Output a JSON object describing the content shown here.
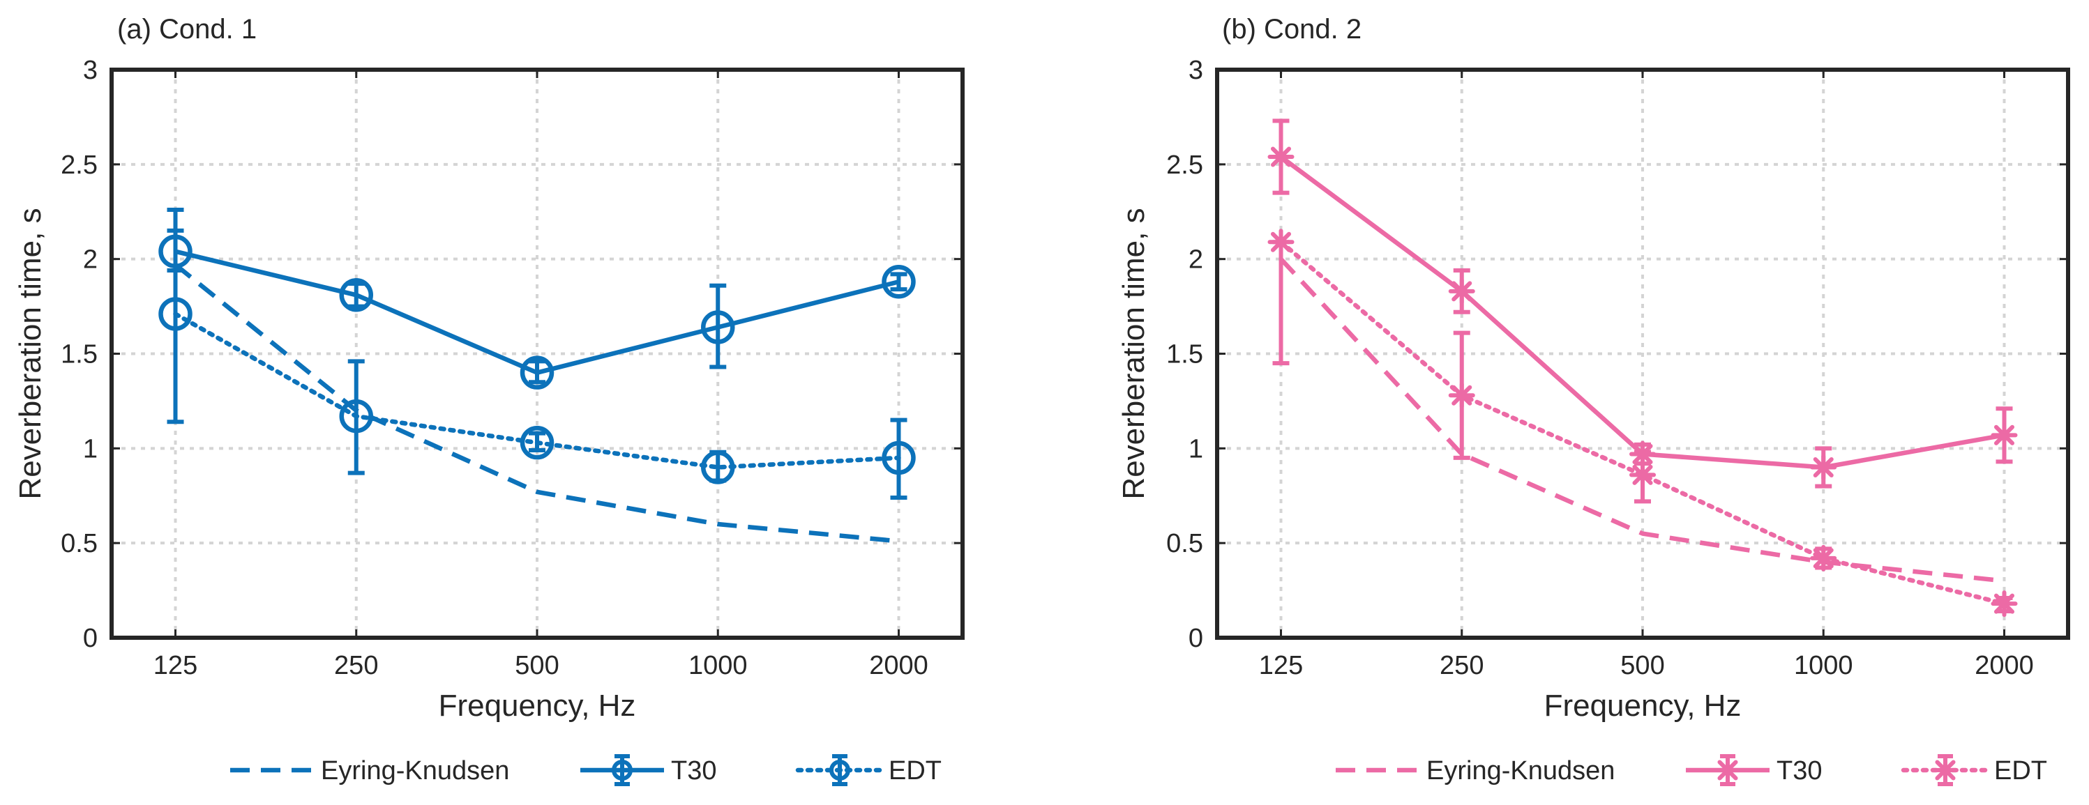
{
  "chart_data": [
    {
      "type": "line",
      "panel_title": "(a) Cond. 1",
      "xlabel": "Frequency, Hz",
      "ylabel": "Reverberation time, s",
      "categories": [
        "125",
        "250",
        "500",
        "1000",
        "2000"
      ],
      "y_ticks": [
        "0",
        "0.5",
        "1",
        "1.5",
        "2",
        "2.5",
        "3"
      ],
      "ylim": [
        0,
        3
      ],
      "grid": true,
      "legend_position": "bottom",
      "series": [
        {
          "name": "Eyring-Knudsen",
          "style": "dashed",
          "marker": "none",
          "values": [
            1.97,
            1.2,
            0.77,
            0.6,
            0.51
          ]
        },
        {
          "name": "T30",
          "style": "solid",
          "marker": "circle",
          "values": [
            2.04,
            1.81,
            1.4,
            1.64,
            1.88
          ],
          "err_low": [
            1.94,
            1.75,
            1.35,
            1.43,
            1.84
          ],
          "err_high": [
            2.26,
            1.87,
            1.46,
            1.86,
            1.92
          ]
        },
        {
          "name": "EDT",
          "style": "dotted",
          "marker": "circle",
          "values": [
            1.71,
            1.17,
            1.03,
            0.9,
            0.95
          ],
          "err_low": [
            1.14,
            0.87,
            0.99,
            0.83,
            0.74
          ],
          "err_high": [
            2.15,
            1.46,
            1.08,
            0.98,
            1.15
          ]
        }
      ],
      "color": "#0c72ba"
    },
    {
      "type": "line",
      "panel_title": "(b) Cond. 2",
      "xlabel": "Frequency, Hz",
      "ylabel": "Reverberation time, s",
      "categories": [
        "125",
        "250",
        "500",
        "1000",
        "2000"
      ],
      "y_ticks": [
        "0",
        "0.5",
        "1",
        "1.5",
        "2",
        "2.5",
        "3"
      ],
      "ylim": [
        0,
        3
      ],
      "grid": true,
      "legend_position": "bottom",
      "series": [
        {
          "name": "Eyring-Knudsen",
          "style": "dashed",
          "marker": "none",
          "values": [
            2.0,
            0.97,
            0.55,
            0.4,
            0.3
          ]
        },
        {
          "name": "T30",
          "style": "solid",
          "marker": "asterisk",
          "values": [
            2.54,
            1.83,
            0.97,
            0.9,
            1.07
          ],
          "err_low": [
            2.35,
            1.72,
            0.92,
            0.8,
            0.93
          ],
          "err_high": [
            2.73,
            1.94,
            1.02,
            1.0,
            1.21
          ]
        },
        {
          "name": "EDT",
          "style": "dotted",
          "marker": "asterisk",
          "values": [
            2.09,
            1.28,
            0.86,
            0.42,
            0.18
          ],
          "err_low": [
            1.45,
            0.95,
            0.72,
            0.37,
            0.14
          ],
          "err_high": [
            2.09,
            1.61,
            0.98,
            0.47,
            0.21
          ]
        }
      ],
      "color": "#ec6aa5"
    }
  ]
}
